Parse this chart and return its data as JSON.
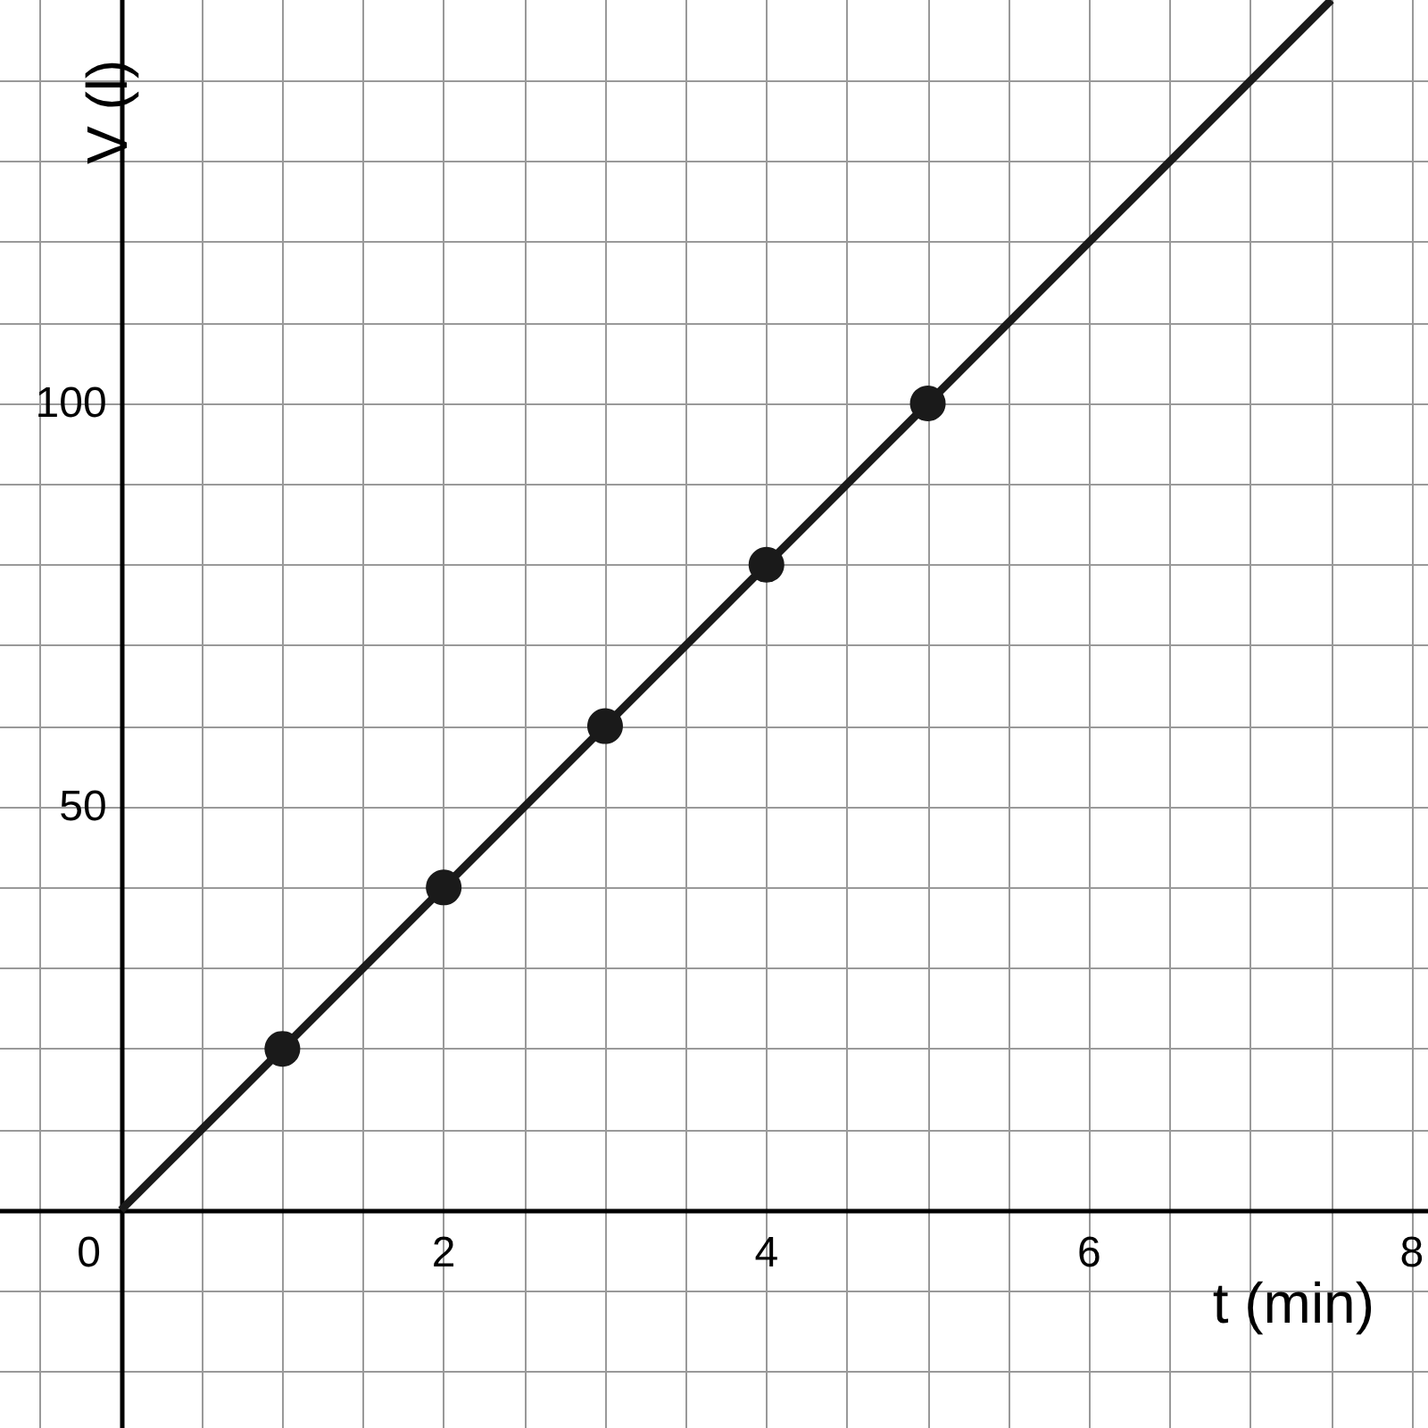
{
  "chart_data": {
    "type": "scatter",
    "xlabel": "t (min)",
    "ylabel": "V (l)",
    "xlim": [
      -0.75,
      8.1
    ],
    "ylim": [
      -27,
      150
    ],
    "xticks": [
      {
        "value": -0.5,
        "label": null
      },
      {
        "value": 0,
        "label": "0"
      },
      {
        "value": 0.5,
        "label": null
      },
      {
        "value": 1,
        "label": null
      },
      {
        "value": 1.5,
        "label": null
      },
      2,
      {
        "value": 2.5,
        "label": null
      },
      {
        "value": 3,
        "label": null
      },
      {
        "value": 3.5,
        "label": null
      },
      4,
      {
        "value": 4.5,
        "label": null
      },
      {
        "value": 5,
        "label": null
      },
      {
        "value": 5.5,
        "label": null
      },
      6,
      {
        "value": 6.5,
        "label": null
      },
      {
        "value": 7,
        "label": null
      },
      {
        "value": 7.5,
        "label": null
      },
      8
    ],
    "yticks": [
      {
        "value": -20,
        "label": null
      },
      {
        "value": -10,
        "label": null
      },
      {
        "value": 0,
        "label": null
      },
      {
        "value": 10,
        "label": null
      },
      {
        "value": 20,
        "label": null
      },
      {
        "value": 30,
        "label": null
      },
      {
        "value": 40,
        "label": null
      },
      50,
      {
        "value": 60,
        "label": null
      },
      {
        "value": 70,
        "label": null
      },
      {
        "value": 80,
        "label": null
      },
      {
        "value": 90,
        "label": null
      },
      100,
      {
        "value": 110,
        "label": null
      },
      {
        "value": 120,
        "label": null
      },
      {
        "value": 130,
        "label": null
      },
      {
        "value": 140,
        "label": null
      }
    ],
    "grid": true,
    "marker": "circle",
    "series": [
      {
        "type": "line",
        "color": "#1a1a1a",
        "x": [
          0,
          7.5
        ],
        "values": [
          0,
          150
        ],
        "line_style": "solid",
        "marker": "none"
      },
      {
        "color": "#1a1a1a",
        "x": [
          1,
          2,
          3,
          4,
          5
        ],
        "values": [
          20,
          40,
          60,
          80,
          100
        ]
      }
    ]
  }
}
